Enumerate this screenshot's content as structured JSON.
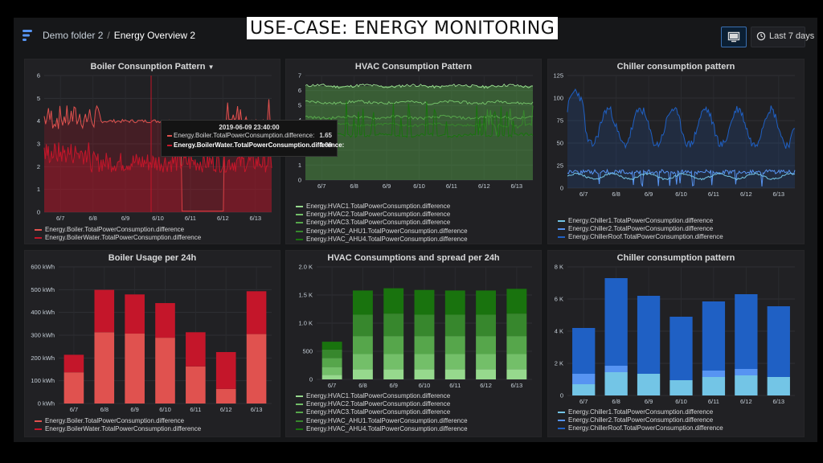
{
  "header": {
    "breadcrumb_folder": "Demo folder 2",
    "breadcrumb_separator": "/",
    "breadcrumb_dashboard": "Energy Overview 2",
    "overlay_title": "USE-CASE: ENERGY MONITORING",
    "time_range": "Last 7 days",
    "tv_mode_icon": "monitor-icon",
    "clock_icon": "clock-icon"
  },
  "colors": {
    "background": "#161719",
    "panel": "#212124",
    "red_light": "#e0524f",
    "red_dark": "#c4162a",
    "green": "#73bf69",
    "blue": "#1f60c4",
    "blue_light": "#73c5e6"
  },
  "panels": {
    "boiler_pattern": {
      "title": "Boiler Consunption Pattern",
      "legend": [
        "Energy.Boiler.TotalPowerConsumption.difference",
        "Energy.BoilerWater.TotalPowerConsumption.difference"
      ],
      "tooltip": {
        "time": "2019-06-09 23:40:00",
        "rows": [
          {
            "label": "Energy.Boiler.TotalPowerConsumption.difference:",
            "value": "1.65"
          },
          {
            "label": "Energy.BoilerWater.TotalPowerConsumption.difference:",
            "value": "4.00"
          }
        ]
      }
    },
    "hvac_pattern": {
      "title": "HVAC Consumption Pattern",
      "legend": [
        "Energy.HVAC1.TotalPowerConsumption.difference",
        "Energy.HVAC2.TotalPowerConsumption.difference",
        "Energy.HVAC3.TotalPowerConsumption.difference",
        "Energy.HVAC_AHU1.TotalPowerConsumption.difference",
        "Energy.HVAC_AHU4.TotalPowerConsumption.difference"
      ]
    },
    "chiller_pattern": {
      "title": "Chiller consumption pattern",
      "legend": [
        "Energy.Chiller1.TotalPowerConsumption.difference",
        "Energy.Chiller2.TotalPowerConsumption.difference",
        "Energy.ChillerRoof.TotalPowerConsumption.difference"
      ]
    },
    "boiler_usage": {
      "title": "Boiler Usage per 24h",
      "legend": [
        "Energy.Boiler.TotalPowerConsumption.difference",
        "Energy.BoilerWater.TotalPowerConsumption.difference"
      ]
    },
    "hvac_spread": {
      "title": "HVAC Consumptions and spread per 24h",
      "legend": [
        "Energy.HVAC1.TotalPowerConsumption.difference",
        "Energy.HVAC2.TotalPowerConsumption.difference",
        "Energy.HVAC3.TotalPowerConsumption.difference",
        "Energy.HVAC_AHU1.TotalPowerConsumption.difference",
        "Energy.HVAC_AHU4.TotalPowerConsumption.difference"
      ]
    },
    "chiller_stacked": {
      "title": "Chiller consumption pattern",
      "legend": [
        "Energy.Chiller1.TotalPowerConsumption.difference",
        "Energy.Chiller2.TotalPowerConsumption.difference",
        "Energy.ChillerRoof.TotalPowerConsumption.difference"
      ]
    }
  },
  "chart_data": [
    {
      "id": "boiler_pattern",
      "type": "line",
      "title": "Boiler Consunption Pattern",
      "x_ticks": [
        "6/7",
        "6/8",
        "6/9",
        "6/10",
        "6/11",
        "6/12",
        "6/13"
      ],
      "y_ticks": [
        "0",
        "1",
        "2",
        "3",
        "4",
        "5",
        "6"
      ],
      "ylim": [
        0,
        6
      ],
      "series": [
        {
          "name": "Energy.Boiler.TotalPowerConsumption.difference",
          "color": "#e0524f",
          "approx_level": 2.2
        },
        {
          "name": "Energy.BoilerWater.TotalPowerConsumption.difference",
          "color": "#c4162a",
          "approx_level": 4.0
        }
      ]
    },
    {
      "id": "hvac_pattern",
      "type": "area",
      "title": "HVAC Consumption Pattern",
      "x_ticks": [
        "6/7",
        "6/8",
        "6/9",
        "6/10",
        "6/11",
        "6/12",
        "6/13"
      ],
      "y_ticks": [
        "0",
        "1",
        "2",
        "3",
        "4",
        "5",
        "6",
        "7"
      ],
      "ylim": [
        0,
        7
      ],
      "series": [
        {
          "name": "Energy.HVAC1.TotalPowerConsumption.difference",
          "approx_level": 6.3
        },
        {
          "name": "Energy.HVAC2.TotalPowerConsumption.difference",
          "approx_level": 5.2
        },
        {
          "name": "Energy.HVAC3.TotalPowerConsumption.difference",
          "approx_level": 4.2
        },
        {
          "name": "Energy.HVAC_AHU1.TotalPowerConsumption.difference",
          "approx_level": 3.7
        },
        {
          "name": "Energy.HVAC_AHU4.TotalPowerConsumption.difference",
          "approx_level": 3.0
        }
      ]
    },
    {
      "id": "chiller_pattern",
      "type": "line",
      "title": "Chiller consumption pattern",
      "x_ticks": [
        "6/7",
        "6/8",
        "6/9",
        "6/10",
        "6/11",
        "6/12",
        "6/13"
      ],
      "y_ticks": [
        "0",
        "25",
        "50",
        "75",
        "100",
        "125"
      ],
      "ylim": [
        0,
        125
      ],
      "series": [
        {
          "name": "Energy.Chiller1.TotalPowerConsumption.difference",
          "color": "#73c5e6",
          "approx_level": 15
        },
        {
          "name": "Energy.Chiller2.TotalPowerConsumption.difference",
          "color": "#5794f2",
          "approx_level": 20
        },
        {
          "name": "Energy.ChillerRoof.TotalPowerConsumption.difference",
          "color": "#1f60c4",
          "approx_level": 70
        }
      ]
    },
    {
      "id": "boiler_usage",
      "type": "bar",
      "title": "Boiler Usage per 24h",
      "categories": [
        "6/7",
        "6/8",
        "6/9",
        "6/10",
        "6/11",
        "6/12",
        "6/13"
      ],
      "y_ticks": [
        "0 kWh",
        "100 kWh",
        "200 kWh",
        "300 kWh",
        "400 kWh",
        "500 kWh",
        "600 kWh"
      ],
      "ylim": [
        0,
        600
      ],
      "stacked": true,
      "series": [
        {
          "name": "Energy.Boiler.TotalPowerConsumption.difference",
          "color": "#e0524f",
          "values": [
            137,
            313,
            307,
            289,
            163,
            64,
            305
          ]
        },
        {
          "name": "Energy.BoilerWater.TotalPowerConsumption.difference",
          "color": "#c4162a",
          "values": [
            77,
            186,
            172,
            152,
            150,
            162,
            188
          ]
        }
      ]
    },
    {
      "id": "hvac_spread",
      "type": "bar",
      "title": "HVAC Consumptions and spread per 24h",
      "categories": [
        "6/7",
        "6/8",
        "6/9",
        "6/10",
        "6/11",
        "6/12",
        "6/13"
      ],
      "y_ticks": [
        "0",
        "500",
        "1.0 K",
        "1.5 K",
        "2.0 K"
      ],
      "ylim": [
        0,
        2000
      ],
      "stacked": true,
      "series": [
        {
          "name": "Energy.HVAC1.TotalPowerConsumption.difference",
          "color": "#96d98d",
          "values": [
            80,
            180,
            180,
            180,
            180,
            180,
            180
          ]
        },
        {
          "name": "Energy.HVAC2.TotalPowerConsumption.difference",
          "color": "#73bf69",
          "values": [
            140,
            270,
            270,
            270,
            270,
            270,
            270
          ]
        },
        {
          "name": "Energy.HVAC3.TotalPowerConsumption.difference",
          "color": "#56a64b",
          "values": [
            160,
            320,
            320,
            320,
            320,
            320,
            320
          ]
        },
        {
          "name": "Energy.HVAC_AHU1.TotalPowerConsumption.difference",
          "color": "#37872d",
          "values": [
            150,
            380,
            400,
            380,
            380,
            380,
            400
          ]
        },
        {
          "name": "Energy.HVAC_AHU4.TotalPowerConsumption.difference",
          "color": "#19730e",
          "values": [
            140,
            430,
            450,
            440,
            430,
            430,
            440
          ]
        }
      ]
    },
    {
      "id": "chiller_stacked",
      "type": "bar",
      "title": "Chiller consumption pattern",
      "categories": [
        "6/7",
        "6/8",
        "6/9",
        "6/10",
        "6/11",
        "6/12",
        "6/13"
      ],
      "y_ticks": [
        "0",
        "2 K",
        "4 K",
        "6 K",
        "8 K"
      ],
      "ylim": [
        0,
        8000
      ],
      "stacked": true,
      "series": [
        {
          "name": "Energy.Chiller1.TotalPowerConsumption.difference",
          "color": "#73c5e6",
          "values": [
            700,
            1450,
            1350,
            950,
            1150,
            1250,
            1150
          ]
        },
        {
          "name": "Energy.Chiller2.TotalPowerConsumption.difference",
          "color": "#5794f2",
          "values": [
            650,
            400,
            0,
            0,
            400,
            400,
            0
          ]
        },
        {
          "name": "Energy.ChillerRoof.TotalPowerConsumption.difference",
          "color": "#1f60c4",
          "values": [
            2850,
            5450,
            4850,
            3950,
            4300,
            4650,
            4400
          ]
        }
      ]
    }
  ]
}
